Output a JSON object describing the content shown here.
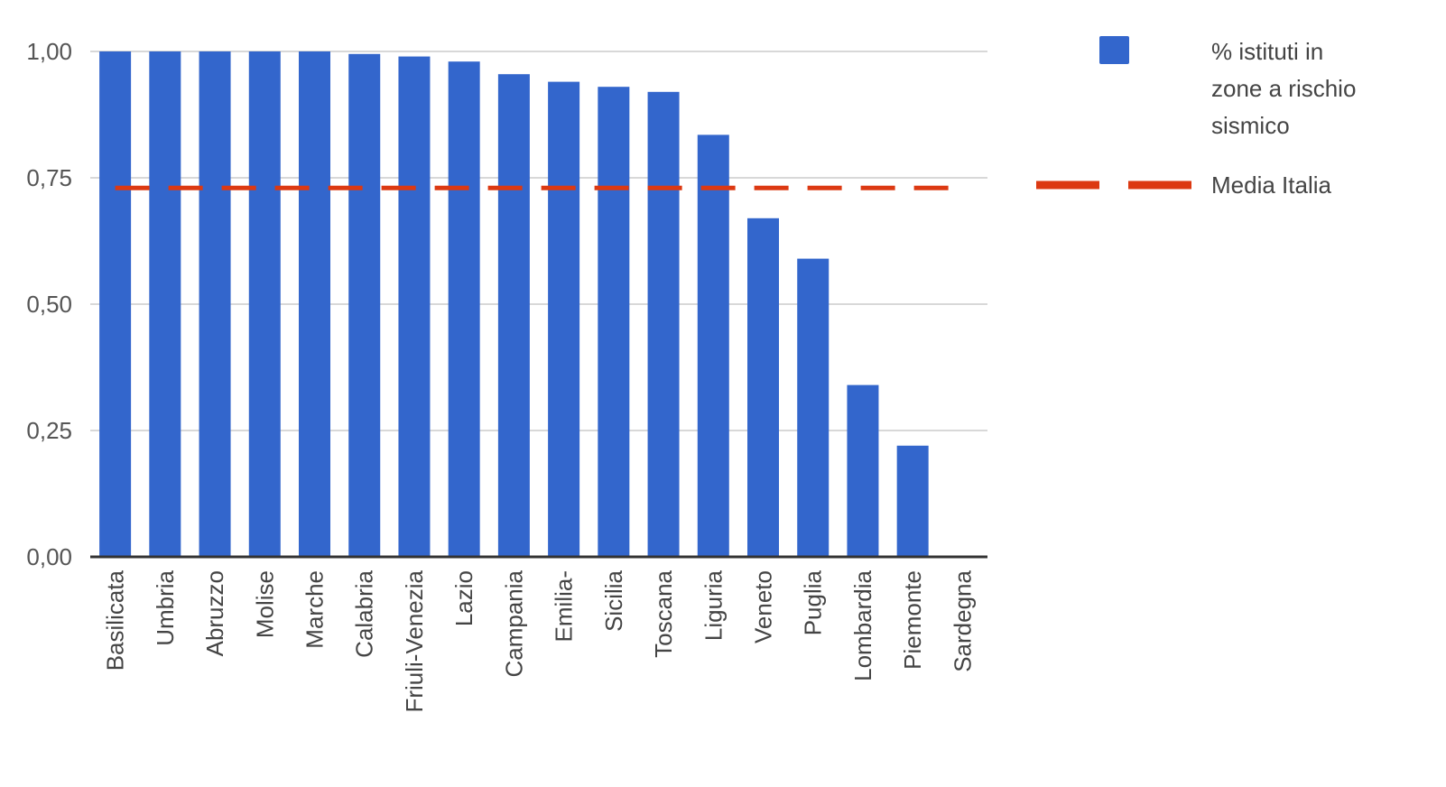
{
  "chart_data": {
    "type": "bar",
    "categories": [
      "Basilicata",
      "Umbria",
      "Abruzzo",
      "Molise",
      "Marche",
      "Calabria",
      "Friuli-Venezia",
      "Lazio",
      "Campania",
      "Emilia-",
      "Sicilia",
      "Toscana",
      "Liguria",
      "Veneto",
      "Puglia",
      "Lombardia",
      "Piemonte",
      "Sardegna"
    ],
    "series": [
      {
        "name": "% istituti in zone a rischio sismico",
        "name_lines": [
          "% istituti in",
          "zone a rischio",
          "sismico"
        ],
        "values": [
          1.0,
          1.0,
          1.0,
          1.0,
          1.0,
          0.995,
          0.99,
          0.98,
          0.955,
          0.94,
          0.93,
          0.92,
          0.835,
          0.67,
          0.59,
          0.34,
          0.22,
          0.0
        ],
        "color": "#3366cc"
      }
    ],
    "reference_lines": [
      {
        "name": "Media Italia",
        "value": 0.73,
        "color": "#dc3912",
        "style": "dashed"
      }
    ],
    "y_ticks": [
      "0,00",
      "0,25",
      "0,50",
      "0,75",
      "1,00"
    ],
    "y_tick_values": [
      0,
      0.25,
      0.5,
      0.75,
      1.0
    ],
    "ylim": [
      0,
      1.0
    ],
    "grid": true,
    "legend_position": "right",
    "title": "",
    "xlabel": "",
    "ylabel": ""
  }
}
